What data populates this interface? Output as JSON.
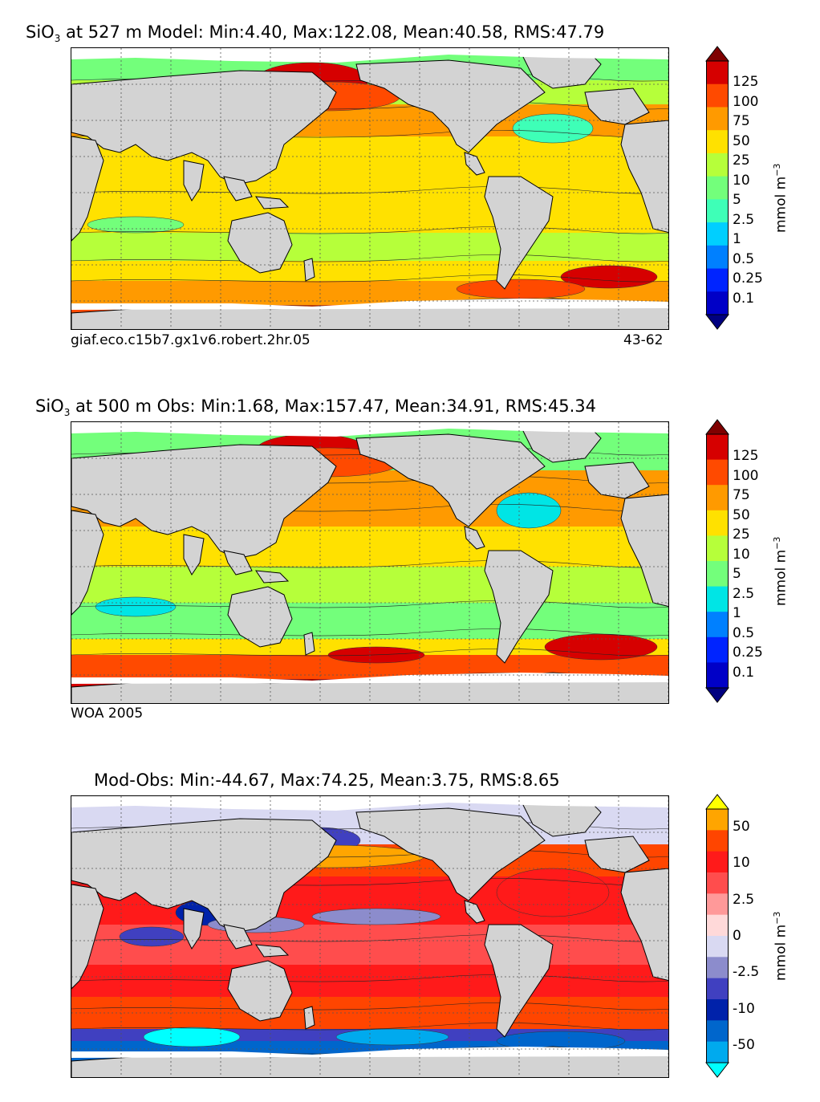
{
  "panels": [
    {
      "id": "model",
      "title_prefix": "SiO",
      "title_sub": "3",
      "title_rest": " at 527 m Model: Min:4.40, Max:122.08, Mean:40.58, RMS:47.79",
      "caption_left": "giaf.eco.c15b7.gx1v6.robert.2hr.05",
      "caption_right": "43-62",
      "colorbar_labels": [
        "125",
        "100",
        "75",
        "50",
        "25",
        "10",
        "5",
        "2.5",
        "1",
        "0.5",
        "0.25",
        "0.1"
      ],
      "unit": "mmol m",
      "unit_sup": "−3",
      "colors": [
        "#7f0000",
        "#d60000",
        "#ff4a00",
        "#ff9a00",
        "#ffe100",
        "#b6ff3a",
        "#73ff7b",
        "#3effb7",
        "#00cfff",
        "#0080ff",
        "#0024ff",
        "#0000c7",
        "#000080"
      ]
    },
    {
      "id": "obs",
      "title_prefix": "SiO",
      "title_sub": "3",
      "title_rest": " at 500 m Obs: Min:1.68, Max:157.47, Mean:34.91, RMS:45.34",
      "caption_left": "WOA 2005",
      "caption_right": "",
      "colorbar_labels": [
        "125",
        "100",
        "75",
        "50",
        "25",
        "10",
        "5",
        "2.5",
        "1",
        "0.5",
        "0.25",
        "0.1"
      ],
      "unit": "mmol m",
      "unit_sup": "−3",
      "colors": [
        "#7f0000",
        "#d60000",
        "#ff4a00",
        "#ff9a00",
        "#ffe100",
        "#b6ff3a",
        "#73ff7b",
        "#00e5e5",
        "#0080ff",
        "#0024ff",
        "#0000c7",
        "#000080"
      ]
    },
    {
      "id": "diff",
      "title_prefix": "",
      "title_sub": "",
      "title_rest": "Mod-Obs: Min:-44.67, Max:74.25, Mean:3.75, RMS:8.65",
      "caption_left": "",
      "caption_right": "",
      "colorbar_labels": [
        "50",
        "10",
        "2.5",
        "0",
        "-2.5",
        "-10",
        "-50"
      ],
      "unit": "mmol m",
      "unit_sup": "−3",
      "colors": [
        "#ffff00",
        "#ffa500",
        "#ff4500",
        "#ff1a1a",
        "#ff4d4d",
        "#ff9999",
        "#ffd9d9",
        "#d9d9f2",
        "#8c8ccc",
        "#4040c0",
        "#0022aa",
        "#0066cc",
        "#00aaee",
        "#00ffff"
      ]
    }
  ],
  "land_color": "#d3d3d3",
  "ice_color": "#ffffff"
}
